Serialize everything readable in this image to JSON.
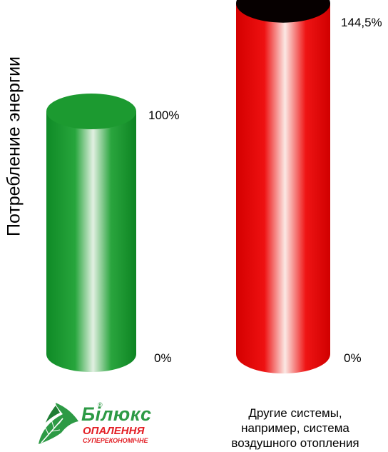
{
  "chart_data": {
    "type": "bar",
    "ylabel": "Потребление энергии",
    "categories": [
      "",
      "Другие системы, например, система воздушного отопления"
    ],
    "series": [
      {
        "values": [
          100,
          144.5
        ]
      }
    ],
    "value_labels": [
      "100%",
      "144,5%"
    ],
    "baseline_labels": [
      "0%",
      "0%"
    ],
    "colors": [
      "#1e9b32",
      "#ee1212"
    ],
    "ylim": [
      0,
      150
    ],
    "grid": false
  },
  "caption_lines": [
    "Другие системы,",
    "например, система",
    "воздушного отопления"
  ],
  "logo": {
    "brand": "Білюкс",
    "registered": "®",
    "line1": "ОПАЛЕННЯ",
    "line2": "СУПЕРЕКОНОМІЧНЕ"
  }
}
